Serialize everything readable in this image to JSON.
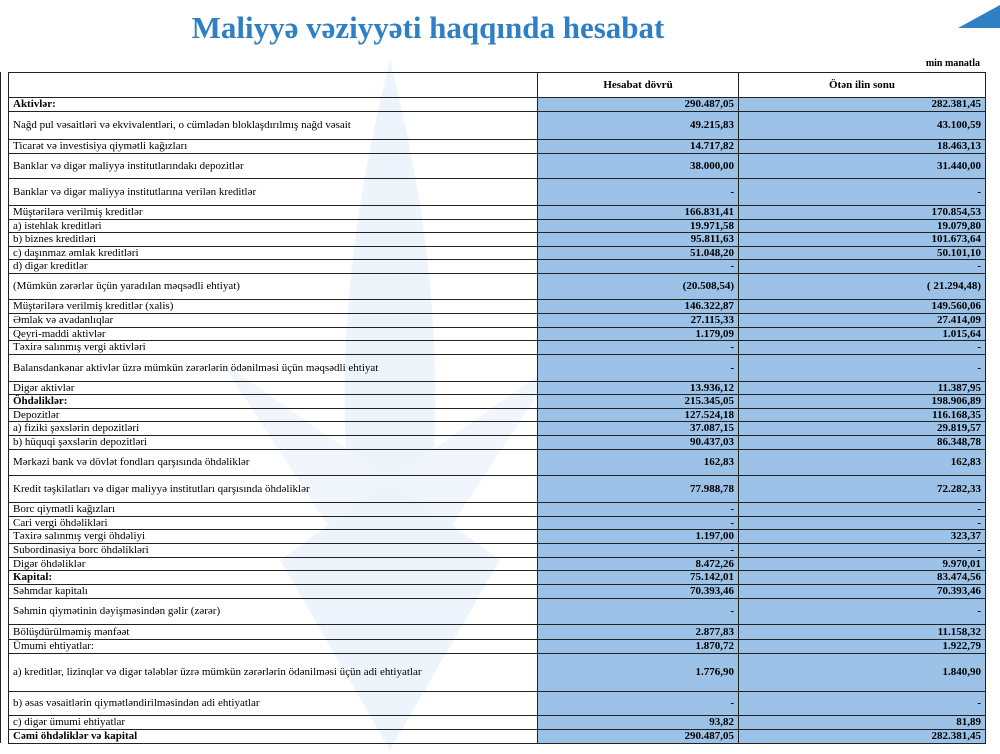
{
  "title": "Maliyyə vəziyyəti haqqında hesabat",
  "unit": "min manatla",
  "columns": [
    "",
    "Hesabat dövrü",
    "Ötən ilin sonu"
  ],
  "colors": {
    "title": "#2f7fc4",
    "cell_fill": "#9dc3e6"
  },
  "rows": [
    {
      "label": "Aktivlər:",
      "current": "290.487,05",
      "previous": "282.381,45",
      "bold": true
    },
    {
      "label": "Nağd pul vəsaitləri və  ekvivalentləri, o cümlədən bloklaşdırılmış nağd vəsait",
      "current": "49.215,83",
      "previous": "43.100,59"
    },
    {
      "label": "Ticarət və investisiya qiymətli kağızları",
      "current": "14.717,82",
      "previous": "18.463,13"
    },
    {
      "label": "Banklar və digər maliyyə institutlarındakı depozitlər",
      "current": "38.000,00",
      "previous": "31.440,00"
    },
    {
      "label": "Banklar və digər maliyyə institutlarına verilən kreditlər",
      "current": "-",
      "previous": "-"
    },
    {
      "label": "Müştərilərə verilmiş kreditlər",
      "current": "166.831,41",
      "previous": "170.854,53"
    },
    {
      "label": "a) istehlak kreditləri",
      "current": "19.971,58",
      "previous": "19.079,80"
    },
    {
      "label": "b) biznes kreditləri",
      "current": "95.811,63",
      "previous": "101.673,64"
    },
    {
      "label": "c) daşınmaz əmlak kreditləri",
      "current": "51.048,20",
      "previous": "50.101,10"
    },
    {
      "label": "d) digər kreditlər",
      "current": "-",
      "previous": "-"
    },
    {
      "label": "(Mümkün zərərlər üçün yaradılan məqsədli ehtiyat)",
      "current": "(20.508,54)",
      "previous": "( 21.294,48)"
    },
    {
      "label": "Müştərilərə verilmiş kreditlər (xalis)",
      "current": "146.322,87",
      "previous": "149.560,06"
    },
    {
      "label": "Əmlak və avadanlıqlar",
      "current": "27.115,33",
      "previous": "27.414,09"
    },
    {
      "label": "Qeyri-maddi aktivlər",
      "current": "1.179,09",
      "previous": "1.015,64"
    },
    {
      "label": "Təxirə salınmış vergi aktivləri",
      "current": "-",
      "previous": "-"
    },
    {
      "label": "Balansdankənar aktivlər üzrə mümkün zərərlərin ödənilməsi üçün məqsədli ehtiyat",
      "current": "-",
      "previous": "-"
    },
    {
      "label": "Digər aktivlər",
      "current": "13.936,12",
      "previous": "11.387,95"
    },
    {
      "label": "Öhdəliklər:",
      "current": "215.345,05",
      "previous": "198.906,89",
      "bold": true
    },
    {
      "label": "Depozitlər",
      "current": "127.524,18",
      "previous": "116.168,35"
    },
    {
      "label": "a) fiziki şəxslərin depozitləri",
      "current": "37.087,15",
      "previous": "29.819,57"
    },
    {
      "label": "b) hüquqi şəxslərin depozitləri",
      "current": "90.437,03",
      "previous": "86.348,78"
    },
    {
      "label": "Mərkəzi bank və dövlət fondları qarşısında öhdəliklər",
      "current": "162,83",
      "previous": "162,83"
    },
    {
      "label": "Kredit təşkilatları və digər maliyyə institutları qarşısında öhdəliklər",
      "current": "77.988,78",
      "previous": "72.282,33"
    },
    {
      "label": "Borc qiymətli kağızları",
      "current": "-",
      "previous": "-"
    },
    {
      "label": "Cari vergi öhdəlikləri",
      "current": "-",
      "previous": "-"
    },
    {
      "label": "Təxirə salınmış vergi öhdəliyi",
      "current": "1.197,00",
      "previous": "323,37"
    },
    {
      "label": "Subordinasiya borc öhdəlikləri",
      "current": "-",
      "previous": "-"
    },
    {
      "label": "Digər öhdəliklər",
      "current": "8.472,26",
      "previous": "9.970,01"
    },
    {
      "label": "Kapital:",
      "current": "75.142,01",
      "previous": "83.474,56",
      "bold": true
    },
    {
      "label": "Səhmdar kapitalı",
      "current": "70.393,46",
      "previous": "70.393,46"
    },
    {
      "label": "Səhmin qiymətinin dəyişməsindən gəlir (zərər)",
      "current": "-",
      "previous": "-"
    },
    {
      "label": "Bölüşdürülməmiş mənfəət",
      "current": "2.877,83",
      "previous": "11.158,32"
    },
    {
      "label": "Ümumi ehtiyatlar:",
      "current": "1.870,72",
      "previous": "1.922,79"
    },
    {
      "label": "a) kreditlər, lizinqlər və digər tələblər üzrə mümkün zərərlərin ödənilməsi üçün adi ehtiyatlar",
      "current": "1.776,90",
      "previous": "1.840,90"
    },
    {
      "label": "b) əsas vəsaitlərin qiymətləndirilməsindən adi ehtiyatlar",
      "current": "-",
      "previous": "-"
    },
    {
      "label": "c) digər ümumi ehtiyatlar",
      "current": "93,82",
      "previous": "81,89"
    },
    {
      "label": "Cəmi öhdəliklər və kapital",
      "current": "290.487,05",
      "previous": "282.381,45",
      "bold": true
    }
  ]
}
